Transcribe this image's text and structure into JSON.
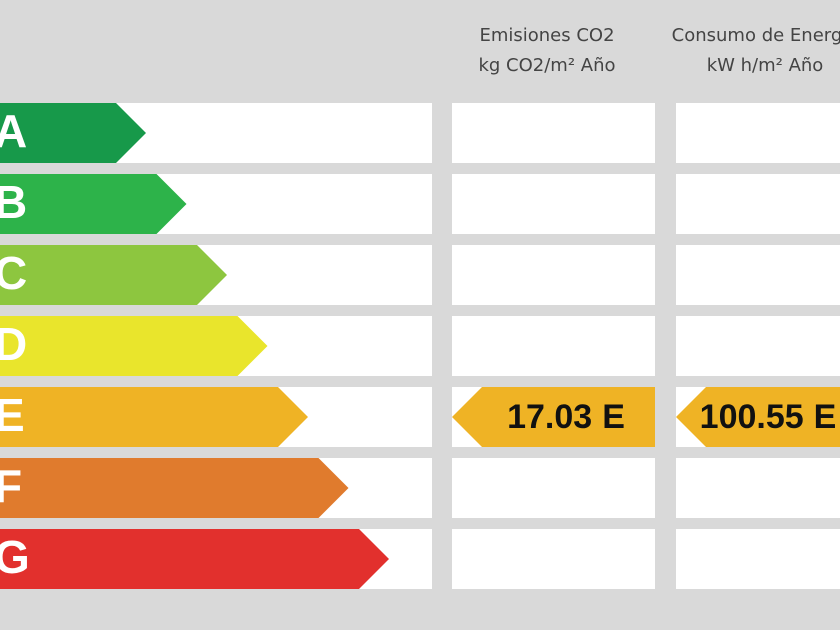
{
  "columns": [
    {
      "title": "Emisiones CO2",
      "unit": "kg CO2/m² Año"
    },
    {
      "title": "Consumo de Energía",
      "unit": "kW h/m² Año"
    }
  ],
  "grades": [
    {
      "letter": "A",
      "color": "#17994a"
    },
    {
      "letter": "B",
      "color": "#2db34a"
    },
    {
      "letter": "C",
      "color": "#8dc63f"
    },
    {
      "letter": "D",
      "color": "#e9e52c"
    },
    {
      "letter": "E",
      "color": "#efb325"
    },
    {
      "letter": "F",
      "color": "#e07b2d"
    },
    {
      "letter": "G",
      "color": "#e2302d"
    }
  ],
  "ratings": [
    {
      "value": 17.03,
      "grade": "E"
    },
    {
      "value": 100.55,
      "grade": "E"
    }
  ]
}
